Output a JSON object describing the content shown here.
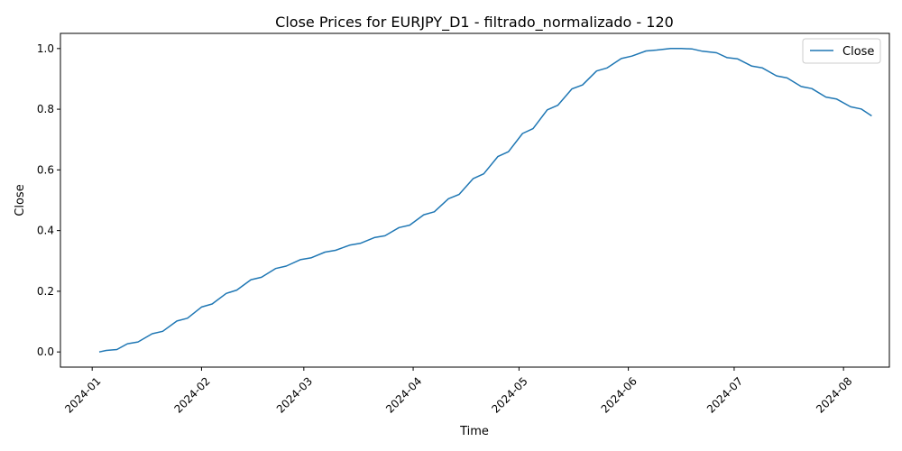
{
  "chart_data": {
    "type": "line",
    "title": "Close Prices for EURJPY_D1 - filtrado_normalizado - 120",
    "xlabel": "Time",
    "ylabel": "Close",
    "xlim": [
      "2023-12-23",
      "2024-08-14"
    ],
    "ylim": [
      -0.05,
      1.05
    ],
    "yticks": [
      0.0,
      0.2,
      0.4,
      0.6,
      0.8,
      1.0
    ],
    "ytick_labels": [
      "0.0",
      "0.2",
      "0.4",
      "0.6",
      "0.8",
      "1.0"
    ],
    "xticks": [
      "2024-01-01",
      "2024-02-01",
      "2024-03-01",
      "2024-04-01",
      "2024-05-01",
      "2024-06-01",
      "2024-07-01",
      "2024-08-01"
    ],
    "xtick_labels": [
      "2024-01",
      "2024-02",
      "2024-03",
      "2024-04",
      "2024-05",
      "2024-06",
      "2024-07",
      "2024-08"
    ],
    "legend": {
      "position": "top-right",
      "entries": [
        "Close"
      ]
    },
    "grid": false,
    "series": [
      {
        "name": "Close",
        "color": "#1f77b4",
        "x": [
          "2024-01-03",
          "2024-01-05",
          "2024-01-08",
          "2024-01-11",
          "2024-01-14",
          "2024-01-18",
          "2024-01-21",
          "2024-01-25",
          "2024-01-28",
          "2024-02-01",
          "2024-02-04",
          "2024-02-08",
          "2024-02-11",
          "2024-02-15",
          "2024-02-18",
          "2024-02-22",
          "2024-02-25",
          "2024-02-29",
          "2024-03-03",
          "2024-03-07",
          "2024-03-10",
          "2024-03-14",
          "2024-03-17",
          "2024-03-21",
          "2024-03-24",
          "2024-03-28",
          "2024-03-31",
          "2024-04-04",
          "2024-04-07",
          "2024-04-11",
          "2024-04-14",
          "2024-04-18",
          "2024-04-21",
          "2024-04-25",
          "2024-04-28",
          "2024-05-02",
          "2024-05-05",
          "2024-05-09",
          "2024-05-12",
          "2024-05-16",
          "2024-05-19",
          "2024-05-23",
          "2024-05-26",
          "2024-05-30",
          "2024-06-02",
          "2024-06-06",
          "2024-06-09",
          "2024-06-13",
          "2024-06-16",
          "2024-06-19",
          "2024-06-22",
          "2024-06-26",
          "2024-06-29",
          "2024-07-02",
          "2024-07-06",
          "2024-07-09",
          "2024-07-13",
          "2024-07-16",
          "2024-07-20",
          "2024-07-23",
          "2024-07-27",
          "2024-07-30",
          "2024-08-03",
          "2024-08-06",
          "2024-08-09"
        ],
        "values": [
          0.0,
          0.005,
          0.008,
          0.027,
          0.033,
          0.06,
          0.068,
          0.102,
          0.111,
          0.148,
          0.158,
          0.193,
          0.204,
          0.238,
          0.246,
          0.275,
          0.283,
          0.304,
          0.31,
          0.329,
          0.335,
          0.352,
          0.358,
          0.377,
          0.383,
          0.41,
          0.418,
          0.452,
          0.462,
          0.505,
          0.519,
          0.571,
          0.587,
          0.644,
          0.66,
          0.72,
          0.736,
          0.798,
          0.813,
          0.867,
          0.88,
          0.926,
          0.936,
          0.967,
          0.975,
          0.992,
          0.995,
          1.0,
          1.0,
          0.999,
          0.991,
          0.986,
          0.97,
          0.966,
          0.942,
          0.936,
          0.91,
          0.903,
          0.875,
          0.868,
          0.84,
          0.834,
          0.808,
          0.801,
          0.778
        ]
      }
    ]
  }
}
